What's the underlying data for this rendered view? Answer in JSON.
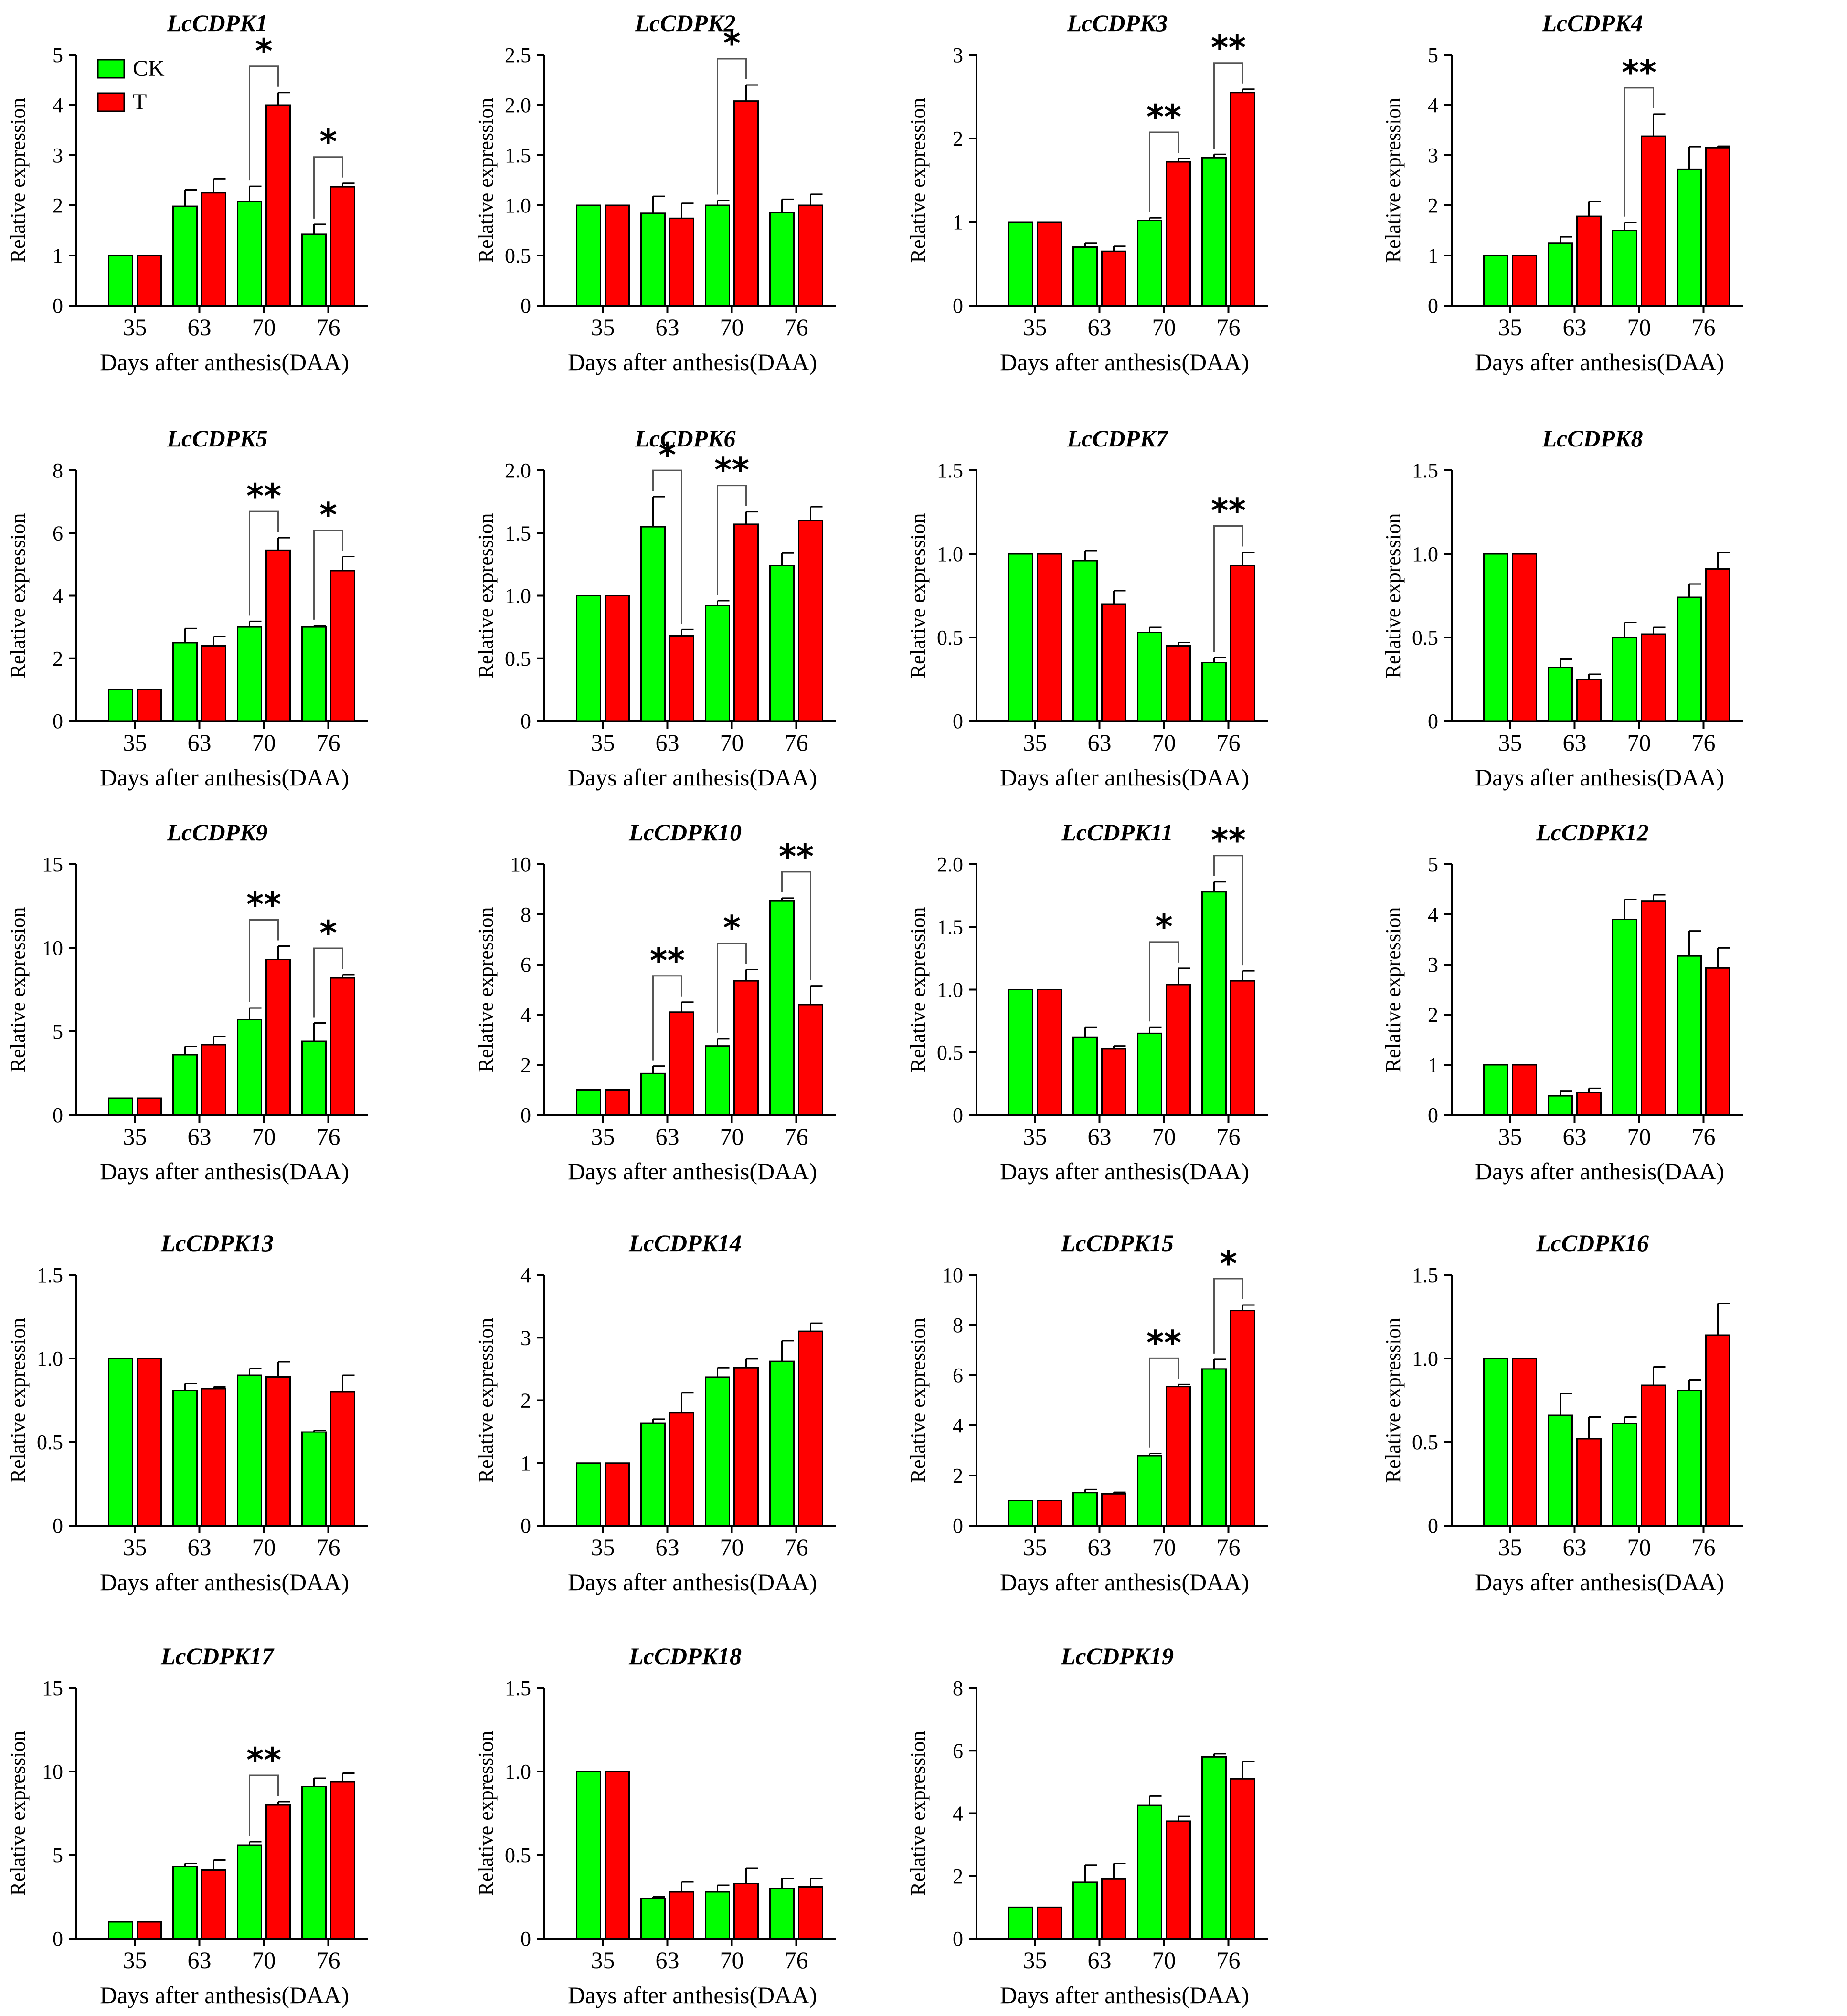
{
  "figure": {
    "legend": [
      {
        "name": "CK",
        "color": "#00ff00"
      },
      {
        "name": "T",
        "color": "#ff0000"
      }
    ],
    "error_bar_color": "#000000"
  },
  "chart_data": [
    {
      "type": "bar",
      "title": "LcCDPK1",
      "xlabel": "Days after anthesis(DAA)",
      "ylabel": "Relative expression",
      "categories": [
        "35",
        "63",
        "70",
        "76"
      ],
      "ylim": [
        0,
        5
      ],
      "yticks": [
        0,
        1,
        2,
        3,
        4,
        5
      ],
      "series": [
        {
          "name": "CK",
          "values": [
            1.0,
            1.98,
            2.08,
            1.42
          ],
          "errors": [
            0,
            0.33,
            0.3,
            0.2
          ]
        },
        {
          "name": "T",
          "values": [
            1.0,
            2.25,
            4.0,
            2.37
          ],
          "errors": [
            0,
            0.28,
            0.25,
            0.07
          ]
        }
      ],
      "significance": [
        {
          "category": "70",
          "label": "*"
        },
        {
          "category": "76",
          "label": "*"
        }
      ]
    },
    {
      "type": "bar",
      "title": "LcCDPK2",
      "xlabel": "Days after anthesis(DAA)",
      "ylabel": "Relative expression",
      "categories": [
        "35",
        "63",
        "70",
        "76"
      ],
      "ylim": [
        0,
        2.5
      ],
      "yticks": [
        "0",
        "0.5",
        "1.0",
        "1.5",
        "2.0",
        "2.5"
      ],
      "series": [
        {
          "name": "CK",
          "values": [
            1.0,
            0.92,
            1.0,
            0.93
          ],
          "errors": [
            0,
            0.17,
            0.05,
            0.13
          ]
        },
        {
          "name": "T",
          "values": [
            1.0,
            0.87,
            2.04,
            1.0
          ],
          "errors": [
            0,
            0.15,
            0.16,
            0.11
          ]
        }
      ],
      "significance": [
        {
          "category": "70",
          "label": "*"
        }
      ]
    },
    {
      "type": "bar",
      "title": "LcCDPK3",
      "xlabel": "Days after anthesis(DAA)",
      "ylabel": "Relative expression",
      "categories": [
        "35",
        "63",
        "70",
        "76"
      ],
      "ylim": [
        0,
        3
      ],
      "yticks": [
        0,
        1,
        2,
        3
      ],
      "series": [
        {
          "name": "CK",
          "values": [
            1.0,
            0.7,
            1.02,
            1.77
          ],
          "errors": [
            0,
            0.05,
            0.03,
            0.04
          ]
        },
        {
          "name": "T",
          "values": [
            1.0,
            0.65,
            1.72,
            2.55
          ],
          "errors": [
            0,
            0.06,
            0.04,
            0.04
          ]
        }
      ],
      "significance": [
        {
          "category": "70",
          "label": "**"
        },
        {
          "category": "76",
          "label": "**"
        }
      ]
    },
    {
      "type": "bar",
      "title": "LcCDPK4",
      "xlabel": "Days after anthesis(DAA)",
      "ylabel": "Relative expression",
      "categories": [
        "35",
        "63",
        "70",
        "76"
      ],
      "ylim": [
        0,
        5
      ],
      "yticks": [
        0,
        1,
        2,
        3,
        4,
        5
      ],
      "series": [
        {
          "name": "CK",
          "values": [
            1.0,
            1.25,
            1.5,
            2.72
          ],
          "errors": [
            0,
            0.12,
            0.16,
            0.45
          ]
        },
        {
          "name": "T",
          "values": [
            1.0,
            1.78,
            3.38,
            3.15
          ],
          "errors": [
            0,
            0.3,
            0.44,
            0.03
          ]
        }
      ],
      "significance": [
        {
          "category": "70",
          "label": "**"
        }
      ]
    },
    {
      "type": "bar",
      "title": "LcCDPK5",
      "xlabel": "Days after anthesis(DAA)",
      "ylabel": "Relative expression",
      "categories": [
        "35",
        "63",
        "70",
        "76"
      ],
      "ylim": [
        0,
        8
      ],
      "yticks": [
        0,
        2,
        4,
        6,
        8
      ],
      "series": [
        {
          "name": "CK",
          "values": [
            1.0,
            2.5,
            3.0,
            3.0
          ],
          "errors": [
            0,
            0.45,
            0.18,
            0.05
          ]
        },
        {
          "name": "T",
          "values": [
            1.0,
            2.4,
            5.45,
            4.8
          ],
          "errors": [
            0,
            0.3,
            0.4,
            0.45
          ]
        }
      ],
      "significance": [
        {
          "category": "70",
          "label": "**"
        },
        {
          "category": "76",
          "label": "*"
        }
      ]
    },
    {
      "type": "bar",
      "title": "LcCDPK6",
      "xlabel": "Days after anthesis(DAA)",
      "ylabel": "Relative expression",
      "categories": [
        "35",
        "63",
        "70",
        "76"
      ],
      "ylim": [
        0,
        2.0
      ],
      "yticks": [
        "0",
        "0.5",
        "1.0",
        "1.5",
        "2.0"
      ],
      "series": [
        {
          "name": "CK",
          "values": [
            1.0,
            1.55,
            0.92,
            1.24
          ],
          "errors": [
            0,
            0.24,
            0.04,
            0.1
          ]
        },
        {
          "name": "T",
          "values": [
            1.0,
            0.68,
            1.57,
            1.6
          ],
          "errors": [
            0,
            0.05,
            0.1,
            0.11
          ]
        }
      ],
      "significance": [
        {
          "category": "63",
          "label": "*"
        },
        {
          "category": "70",
          "label": "**"
        }
      ]
    },
    {
      "type": "bar",
      "title": "LcCDPK7",
      "xlabel": "Days after anthesis(DAA)",
      "ylabel": "Relative expression",
      "categories": [
        "35",
        "63",
        "70",
        "76"
      ],
      "ylim": [
        0,
        1.5
      ],
      "yticks": [
        "0",
        "0.5",
        "1.0",
        "1.5"
      ],
      "series": [
        {
          "name": "CK",
          "values": [
            1.0,
            0.96,
            0.53,
            0.35
          ],
          "errors": [
            0,
            0.06,
            0.03,
            0.03
          ]
        },
        {
          "name": "T",
          "values": [
            1.0,
            0.7,
            0.45,
            0.93
          ],
          "errors": [
            0,
            0.08,
            0.02,
            0.08
          ]
        }
      ],
      "significance": [
        {
          "category": "76",
          "label": "**"
        }
      ]
    },
    {
      "type": "bar",
      "title": "LcCDPK8",
      "xlabel": "Days after anthesis(DAA)",
      "ylabel": "Relative expression",
      "categories": [
        "35",
        "63",
        "70",
        "76"
      ],
      "ylim": [
        0,
        1.5
      ],
      "yticks": [
        "0",
        "0.5",
        "1.0",
        "1.5"
      ],
      "series": [
        {
          "name": "CK",
          "values": [
            1.0,
            0.32,
            0.5,
            0.74
          ],
          "errors": [
            0,
            0.05,
            0.09,
            0.08
          ]
        },
        {
          "name": "T",
          "values": [
            1.0,
            0.25,
            0.52,
            0.91
          ],
          "errors": [
            0,
            0.03,
            0.04,
            0.1
          ]
        }
      ],
      "significance": []
    },
    {
      "type": "bar",
      "title": "LcCDPK9",
      "xlabel": "Days after anthesis(DAA)",
      "ylabel": "Relative expression",
      "categories": [
        "35",
        "63",
        "70",
        "76"
      ],
      "ylim": [
        0,
        15
      ],
      "yticks": [
        0,
        5,
        10,
        15
      ],
      "series": [
        {
          "name": "CK",
          "values": [
            1.0,
            3.6,
            5.7,
            4.4
          ],
          "errors": [
            0,
            0.5,
            0.7,
            1.1
          ]
        },
        {
          "name": "T",
          "values": [
            1.0,
            4.2,
            9.3,
            8.2
          ],
          "errors": [
            0,
            0.5,
            0.8,
            0.2
          ]
        }
      ],
      "significance": [
        {
          "category": "70",
          "label": "**"
        },
        {
          "category": "76",
          "label": "*"
        }
      ]
    },
    {
      "type": "bar",
      "title": "LcCDPK10",
      "xlabel": "Days after anthesis(DAA)",
      "ylabel": "Relative expression",
      "categories": [
        "35",
        "63",
        "70",
        "76"
      ],
      "ylim": [
        0,
        10
      ],
      "yticks": [
        0,
        2,
        4,
        6,
        8,
        10
      ],
      "series": [
        {
          "name": "CK",
          "values": [
            1.0,
            1.65,
            2.75,
            8.55
          ],
          "errors": [
            0,
            0.3,
            0.3,
            0.1
          ]
        },
        {
          "name": "T",
          "values": [
            1.0,
            4.1,
            5.35,
            4.4
          ],
          "errors": [
            0,
            0.4,
            0.45,
            0.75
          ]
        }
      ],
      "significance": [
        {
          "category": "63",
          "label": "**"
        },
        {
          "category": "70",
          "label": "*"
        },
        {
          "category": "76",
          "label": "**"
        }
      ]
    },
    {
      "type": "bar",
      "title": "LcCDPK11",
      "xlabel": "Days after anthesis(DAA)",
      "ylabel": "Relative expression",
      "categories": [
        "35",
        "63",
        "70",
        "76"
      ],
      "ylim": [
        0,
        2.0
      ],
      "yticks": [
        "0",
        "0.5",
        "1.0",
        "1.5",
        "2.0"
      ],
      "series": [
        {
          "name": "CK",
          "values": [
            1.0,
            0.62,
            0.65,
            1.78
          ],
          "errors": [
            0,
            0.08,
            0.05,
            0.08
          ]
        },
        {
          "name": "T",
          "values": [
            1.0,
            0.53,
            1.04,
            1.07
          ],
          "errors": [
            0,
            0.02,
            0.13,
            0.08
          ]
        }
      ],
      "significance": [
        {
          "category": "70",
          "label": "*"
        },
        {
          "category": "76",
          "label": "**"
        }
      ]
    },
    {
      "type": "bar",
      "title": "LcCDPK12",
      "xlabel": "Days after anthesis(DAA)",
      "ylabel": "Relative expression",
      "categories": [
        "35",
        "63",
        "70",
        "76"
      ],
      "ylim": [
        0,
        5
      ],
      "yticks": [
        0,
        1,
        2,
        3,
        4,
        5
      ],
      "series": [
        {
          "name": "CK",
          "values": [
            1.0,
            0.38,
            3.9,
            3.17
          ],
          "errors": [
            0,
            0.1,
            0.4,
            0.5
          ]
        },
        {
          "name": "T",
          "values": [
            1.0,
            0.45,
            4.27,
            2.93
          ],
          "errors": [
            0,
            0.08,
            0.12,
            0.4
          ]
        }
      ],
      "significance": []
    },
    {
      "type": "bar",
      "title": "LcCDPK13",
      "xlabel": "Days after anthesis(DAA)",
      "ylabel": "Relative expression",
      "categories": [
        "35",
        "63",
        "70",
        "76"
      ],
      "ylim": [
        0,
        1.5
      ],
      "yticks": [
        "0",
        "0.5",
        "1.0",
        "1.5"
      ],
      "series": [
        {
          "name": "CK",
          "values": [
            1.0,
            0.81,
            0.9,
            0.56
          ],
          "errors": [
            0,
            0.04,
            0.04,
            0.01
          ]
        },
        {
          "name": "T",
          "values": [
            1.0,
            0.82,
            0.89,
            0.8
          ],
          "errors": [
            0,
            0.01,
            0.09,
            0.1
          ]
        }
      ],
      "significance": []
    },
    {
      "type": "bar",
      "title": "LcCDPK14",
      "xlabel": "Days after anthesis(DAA)",
      "ylabel": "Relative expression",
      "categories": [
        "35",
        "63",
        "70",
        "76"
      ],
      "ylim": [
        0,
        4
      ],
      "yticks": [
        0,
        1,
        2,
        3,
        4
      ],
      "series": [
        {
          "name": "CK",
          "values": [
            1.0,
            1.63,
            2.37,
            2.62
          ],
          "errors": [
            0,
            0.07,
            0.15,
            0.33
          ]
        },
        {
          "name": "T",
          "values": [
            1.0,
            1.8,
            2.52,
            3.1
          ],
          "errors": [
            0,
            0.32,
            0.14,
            0.13
          ]
        }
      ],
      "significance": []
    },
    {
      "type": "bar",
      "title": "LcCDPK15",
      "xlabel": "Days after anthesis(DAA)",
      "ylabel": "Relative expression",
      "categories": [
        "35",
        "63",
        "70",
        "76"
      ],
      "ylim": [
        0,
        10
      ],
      "yticks": [
        0,
        2,
        4,
        6,
        8,
        10
      ],
      "series": [
        {
          "name": "CK",
          "values": [
            1.0,
            1.32,
            2.78,
            6.25
          ],
          "errors": [
            0,
            0.12,
            0.1,
            0.38
          ]
        },
        {
          "name": "T",
          "values": [
            1.0,
            1.27,
            5.55,
            8.58
          ],
          "errors": [
            0,
            0.06,
            0.08,
            0.22
          ]
        }
      ],
      "significance": [
        {
          "category": "70",
          "label": "**"
        },
        {
          "category": "76",
          "label": "*"
        }
      ]
    },
    {
      "type": "bar",
      "title": "LcCDPK16",
      "xlabel": "Days after anthesis(DAA)",
      "ylabel": "Relative expression",
      "categories": [
        "35",
        "63",
        "70",
        "76"
      ],
      "ylim": [
        0,
        1.5
      ],
      "yticks": [
        "0",
        "0.5",
        "1.0",
        "1.5"
      ],
      "series": [
        {
          "name": "CK",
          "values": [
            1.0,
            0.66,
            0.61,
            0.81
          ],
          "errors": [
            0,
            0.13,
            0.04,
            0.06
          ]
        },
        {
          "name": "T",
          "values": [
            1.0,
            0.52,
            0.84,
            1.14
          ],
          "errors": [
            0,
            0.13,
            0.11,
            0.19
          ]
        }
      ],
      "significance": []
    },
    {
      "type": "bar",
      "title": "LcCDPK17",
      "xlabel": "Days after anthesis(DAA)",
      "ylabel": "Relative expression",
      "categories": [
        "35",
        "63",
        "70",
        "76"
      ],
      "ylim": [
        0,
        15
      ],
      "yticks": [
        0,
        5,
        10,
        15
      ],
      "series": [
        {
          "name": "CK",
          "values": [
            1.0,
            4.3,
            5.6,
            9.1
          ],
          "errors": [
            0,
            0.2,
            0.2,
            0.5
          ]
        },
        {
          "name": "T",
          "values": [
            1.0,
            4.1,
            8.0,
            9.4
          ],
          "errors": [
            0,
            0.6,
            0.2,
            0.5
          ]
        }
      ],
      "significance": [
        {
          "category": "70",
          "label": "**"
        }
      ]
    },
    {
      "type": "bar",
      "title": "LcCDPK18",
      "xlabel": "Days after anthesis(DAA)",
      "ylabel": "Relative expression",
      "categories": [
        "35",
        "63",
        "70",
        "76"
      ],
      "ylim": [
        0,
        1.5
      ],
      "yticks": [
        "0",
        "0.5",
        "1.0",
        "1.5"
      ],
      "series": [
        {
          "name": "CK",
          "values": [
            1.0,
            0.24,
            0.28,
            0.3
          ],
          "errors": [
            0,
            0.01,
            0.04,
            0.06
          ]
        },
        {
          "name": "T",
          "values": [
            1.0,
            0.28,
            0.33,
            0.31
          ],
          "errors": [
            0,
            0.06,
            0.09,
            0.05
          ]
        }
      ],
      "significance": []
    },
    {
      "type": "bar",
      "title": "LcCDPK19",
      "xlabel": "Days after anthesis(DAA)",
      "ylabel": "Relative expression",
      "categories": [
        "35",
        "63",
        "70",
        "76"
      ],
      "ylim": [
        0,
        8
      ],
      "yticks": [
        0,
        2,
        4,
        6,
        8
      ],
      "series": [
        {
          "name": "CK",
          "values": [
            1.0,
            1.8,
            4.25,
            5.8
          ],
          "errors": [
            0,
            0.55,
            0.3,
            0.1
          ]
        },
        {
          "name": "T",
          "values": [
            1.0,
            1.9,
            3.75,
            5.1
          ],
          "errors": [
            0,
            0.5,
            0.15,
            0.55
          ]
        }
      ],
      "significance": []
    }
  ]
}
